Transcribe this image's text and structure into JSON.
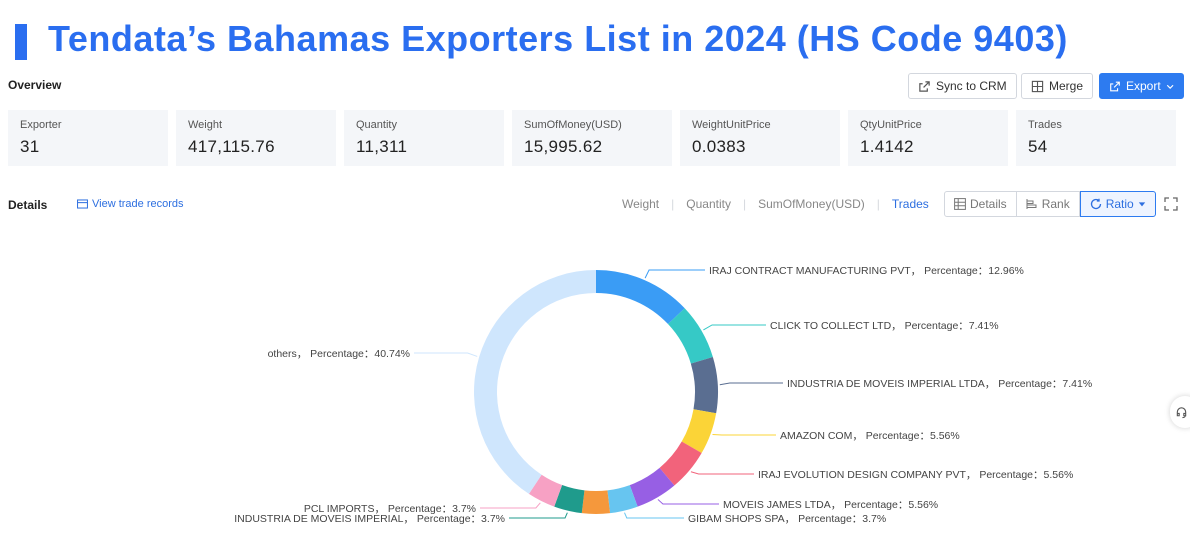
{
  "page_title": "Tendata’s Bahamas Exporters List in 2024 (HS Code 9403)",
  "overview_label": "Overview",
  "toolbar": {
    "sync_label": "Sync to CRM",
    "merge_label": "Merge",
    "export_label": "Export"
  },
  "stats": [
    {
      "label": "Exporter",
      "value": "31"
    },
    {
      "label": "Weight",
      "value": "417,115.76"
    },
    {
      "label": "Quantity",
      "value": "11,311"
    },
    {
      "label": "SumOfMoney(USD)",
      "value": "15,995.62"
    },
    {
      "label": "WeightUnitPrice",
      "value": "0.0383"
    },
    {
      "label": "QtyUnitPrice",
      "value": "1.4142"
    },
    {
      "label": "Trades",
      "value": "54"
    }
  ],
  "details_label": "Details",
  "view_trade_records": "View trade records",
  "metric_tabs": [
    "Weight",
    "Quantity",
    "SumOfMoney(USD)",
    "Trades"
  ],
  "active_metric": "Trades",
  "view_modes": [
    "Details",
    "Rank",
    "Ratio"
  ],
  "active_view": "Ratio",
  "colors": {
    "accent": "#2d7bf0"
  },
  "chart_data": {
    "type": "pie",
    "variant": "donut",
    "title": "",
    "slices": [
      {
        "name": "IRAJ CONTRACT MANUFACTURING PVT",
        "percentage": 12.96,
        "label": "IRAJ CONTRACT MANUFACTURING PVT， Percentage：12.96%",
        "color": "#3a9cf5"
      },
      {
        "name": "CLICK TO COLLECT LTD",
        "percentage": 7.41,
        "label": "CLICK TO COLLECT LTD， Percentage：7.41%",
        "color": "#36c9c6"
      },
      {
        "name": "INDUSTRIA DE MOVEIS IMPERIAL LTDA",
        "percentage": 7.41,
        "label": "INDUSTRIA DE MOVEIS IMPERIAL LTDA， Percentage：7.41%",
        "color": "#5a6e91"
      },
      {
        "name": "AMAZON COM",
        "percentage": 5.56,
        "label": "AMAZON COM， Percentage：5.56%",
        "color": "#fbd437"
      },
      {
        "name": "IRAJ EVOLUTION DESIGN COMPANY PVT",
        "percentage": 5.56,
        "label": "IRAJ EVOLUTION DESIGN COMPANY PVT， Percentage：5.56%",
        "color": "#f2637b"
      },
      {
        "name": "MOVEIS JAMES LTDA",
        "percentage": 5.56,
        "label": "MOVEIS JAMES LTDA， Percentage：5.56%",
        "color": "#975fe4"
      },
      {
        "name": "GIBAM SHOPS SPA",
        "percentage": 3.7,
        "label": "GIBAM SHOPS SPA， Percentage：3.7%",
        "color": "#67c5f0"
      },
      {
        "name": "PCL IMPORTS (orange)",
        "percentage": 3.7,
        "label": "",
        "color": "#f5983c"
      },
      {
        "name": "INDUSTRIA DE MOVEIS IMPERIAL",
        "percentage": 3.7,
        "label": "INDUSTRIA DE MOVEIS IMPERIAL， Percentage：3.7%",
        "color": "#1f9b8c"
      },
      {
        "name": "PCL IMPORTS",
        "percentage": 3.7,
        "label": "PCL IMPORTS， Percentage：3.7%",
        "color": "#f7a1c4"
      },
      {
        "name": "others",
        "percentage": 40.74,
        "label": "others， Percentage：40.74%",
        "color": "#cfe6fd"
      }
    ]
  }
}
